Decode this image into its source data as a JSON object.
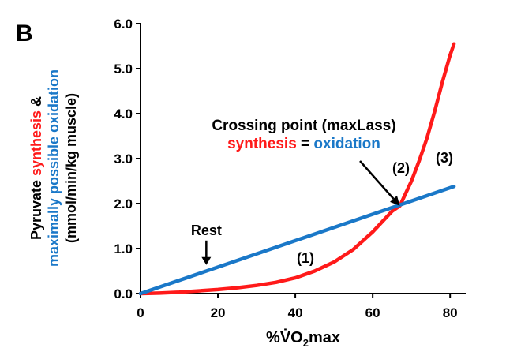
{
  "panel_label": "B",
  "chart_data": {
    "type": "line",
    "xlabel_parts": {
      "prefix": "%",
      "vo": "V̇O",
      "sub": "2",
      "suffix": "max"
    },
    "ylabel": {
      "line1_a": "Pyruvate ",
      "line1_b": "synthesis",
      "line1_c": " &",
      "line2_a": "maximally possible oxidation",
      "line3": "(mmol/min/kg muscle)"
    },
    "xlim": [
      0,
      82
    ],
    "ylim": [
      0,
      6
    ],
    "xticks": [
      "0",
      "20",
      "40",
      "60",
      "80"
    ],
    "yticks": [
      "0.0",
      "1.0",
      "2.0",
      "3.0",
      "4.0",
      "5.0",
      "6.0"
    ],
    "series": [
      {
        "name": "synthesis",
        "color": "#ff1a1a",
        "x": [
          0,
          5,
          10,
          15,
          20,
          25,
          30,
          35,
          40,
          45,
          50,
          55,
          60,
          65,
          67,
          70,
          72,
          74,
          76,
          78,
          80,
          81
        ],
        "y": [
          0,
          0.01,
          0.03,
          0.06,
          0.09,
          0.13,
          0.18,
          0.25,
          0.35,
          0.5,
          0.7,
          0.98,
          1.37,
          1.83,
          1.95,
          2.5,
          2.95,
          3.45,
          4.05,
          4.7,
          5.3,
          5.55
        ]
      },
      {
        "name": "oxidation",
        "color": "#1a78c8",
        "x": [
          0,
          81
        ],
        "y": [
          0,
          2.38
        ]
      }
    ],
    "annotations": {
      "rest": {
        "text": "Rest",
        "x": 17,
        "y": 0.6
      },
      "crossing_title": "Crossing point (maxLass)",
      "crossing_eq": {
        "left": "synthesis",
        "mid": " = ",
        "right": "oxidation"
      },
      "crossing_point": {
        "x": 67,
        "y": 1.95
      },
      "region_labels": [
        "(1)",
        "(2)",
        "(3)"
      ]
    }
  }
}
